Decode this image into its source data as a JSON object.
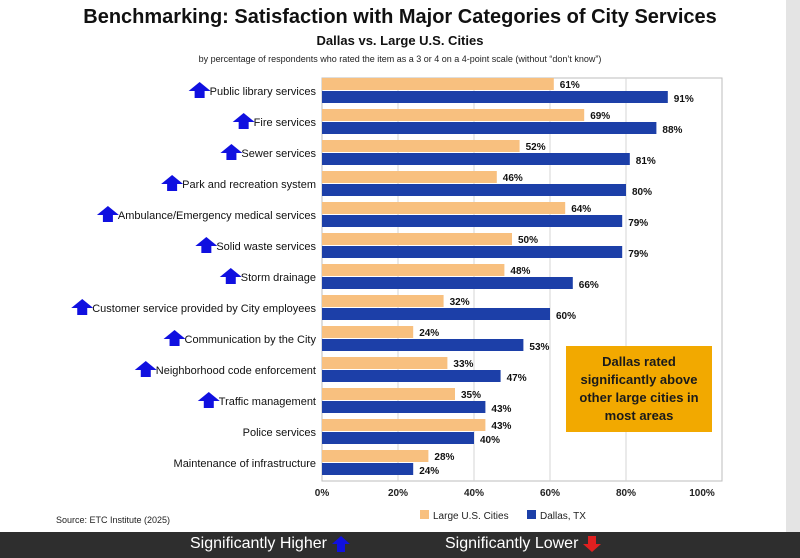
{
  "chart_data": {
    "type": "bar",
    "orientation": "horizontal",
    "title": "Benchmarking: Satisfaction with Major Categories of City Services",
    "subtitle": "Dallas vs. Large U.S. Cities",
    "note": "by percentage of respondents who rated the item as a 3 or 4 on a 4-point scale (without “don’t know”)",
    "categories": [
      "Public library services",
      "Fire services",
      "Sewer services",
      "Park and recreation system",
      "Ambulance/Emergency medical services",
      "Solid waste services",
      "Storm drainage",
      "Customer service provided by City employees",
      "Communication by the City",
      "Neighborhood code enforcement",
      "Traffic management",
      "Police services",
      "Maintenance of infrastructure"
    ],
    "series": [
      {
        "name": "Large U.S. Cities",
        "color": "#f8c07f",
        "values": [
          61,
          69,
          52,
          46,
          64,
          50,
          48,
          32,
          24,
          33,
          35,
          43,
          28
        ]
      },
      {
        "name": "Dallas, TX",
        "color": "#1c3fa8",
        "values": [
          91,
          88,
          81,
          80,
          79,
          79,
          66,
          60,
          53,
          47,
          43,
          40,
          24
        ]
      }
    ],
    "significance": [
      "higher",
      "higher",
      "higher",
      "higher",
      "higher",
      "higher",
      "higher",
      "higher",
      "higher",
      "higher",
      "higher",
      "none",
      "none"
    ],
    "x_ticks": [
      "0%",
      "20%",
      "40%",
      "60%",
      "80%",
      "100%"
    ],
    "xlim": [
      0,
      100
    ],
    "grid": true,
    "legend_position": "bottom",
    "callout": "Dallas rated\nsignificantly above\nother large cities in\nmost areas",
    "source": "Source:  ETC Institute (2025)",
    "colors": {
      "up_arrow": "#1010e0",
      "down_arrow": "#e02020"
    }
  },
  "footer": {
    "higher_label": "Significantly Higher",
    "lower_label": "Significantly Lower"
  }
}
